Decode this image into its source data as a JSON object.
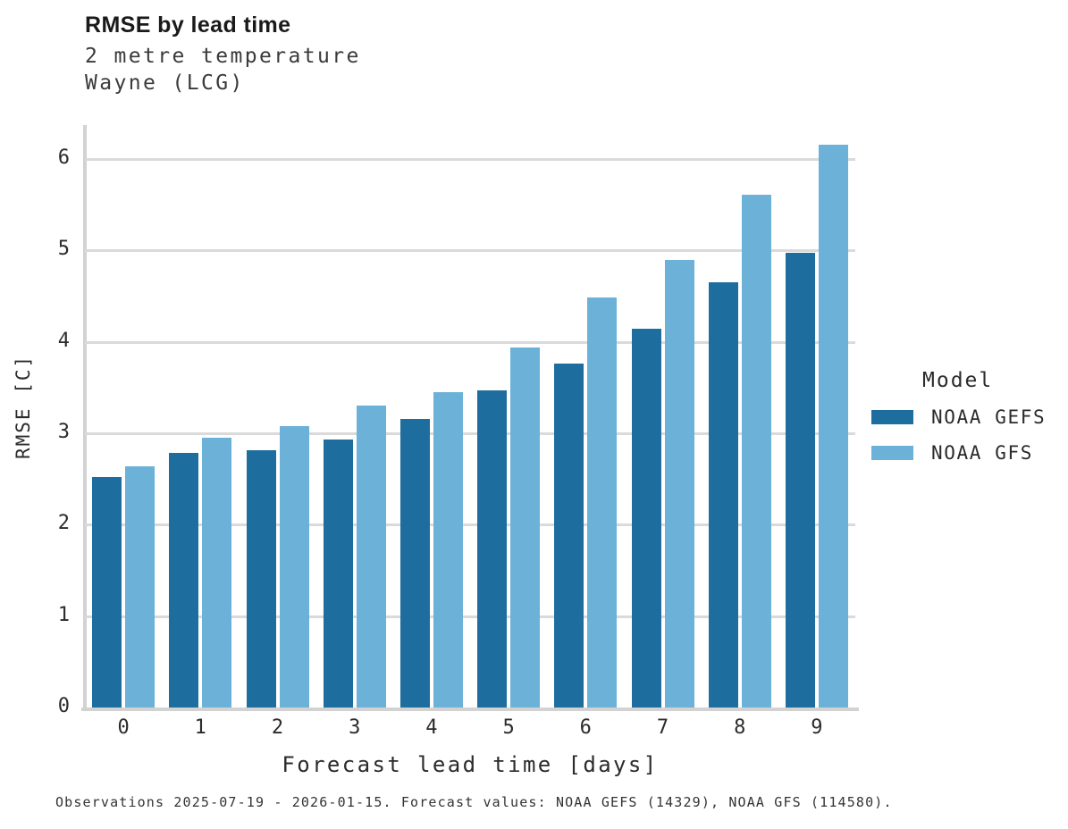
{
  "header": {
    "title": "RMSE by lead time",
    "subtitle_line1": "2 metre temperature",
    "subtitle_line2": "Wayne (LCG)"
  },
  "caption": "Observations 2025-07-19 - 2026-01-15. Forecast values: NOAA GEFS (14329), NOAA GFS (114580).",
  "legend": {
    "title": "Model",
    "items": [
      {
        "label": "NOAA GEFS",
        "color": "#1d6e9e"
      },
      {
        "label": "NOAA GFS",
        "color": "#6cb1d8"
      }
    ]
  },
  "colors": {
    "bar_dark_blue": "#1d6e9e",
    "bar_light_blue": "#6cb1d8",
    "gridline": "#dadada",
    "axis_line": "#d2d2d2",
    "title_text": "#1a1a1a",
    "body_text": "#2b2b2b"
  },
  "chart_data": {
    "type": "bar",
    "title": "RMSE by lead time",
    "subtitle": [
      "2 metre temperature",
      "Wayne (LCG)"
    ],
    "xlabel": "Forecast lead time [days]",
    "ylabel": "RMSE [C]",
    "categories": [
      "0",
      "1",
      "2",
      "3",
      "4",
      "5",
      "6",
      "7",
      "8",
      "9"
    ],
    "series": [
      {
        "name": "NOAA GEFS",
        "color": "#1d6e9e",
        "values": [
          2.52,
          2.78,
          2.81,
          2.93,
          3.16,
          3.47,
          3.76,
          4.14,
          4.65,
          4.97
        ]
      },
      {
        "name": "NOAA GFS",
        "color": "#6cb1d8",
        "values": [
          2.64,
          2.95,
          3.08,
          3.3,
          3.45,
          3.94,
          4.48,
          4.89,
          5.61,
          6.15
        ]
      }
    ],
    "ylim": [
      0,
      6.32
    ],
    "yticks": [
      0,
      1,
      2,
      3,
      4,
      5,
      6
    ],
    "grid": "horizontal",
    "legend_position": "right",
    "legend_title": "Model"
  }
}
